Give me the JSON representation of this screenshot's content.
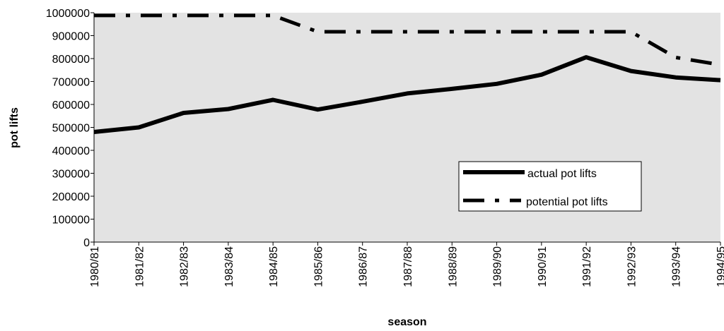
{
  "chart_data": {
    "type": "line",
    "xlabel": "season",
    "ylabel": "pot lifts",
    "categories": [
      "1980/81",
      "1981/82",
      "1982/83",
      "1983/84",
      "1984/85",
      "1985/86",
      "1986/87",
      "1987/88",
      "1988/89",
      "1989/90",
      "1990/91",
      "1991/92",
      "1992/93",
      "1993/94",
      "1994/95"
    ],
    "ylim": [
      0,
      1000000
    ],
    "yticks": [
      0,
      100000,
      200000,
      300000,
      400000,
      500000,
      600000,
      700000,
      800000,
      900000,
      1000000
    ],
    "ytick_labels": [
      "0",
      "100000",
      "200000",
      "300000",
      "400000",
      "500000",
      "600000",
      "700000",
      "800000",
      "900000",
      "1000000"
    ],
    "grid": false,
    "legend_position": "bottom-right",
    "plot_background": "#e3e3e3",
    "series": [
      {
        "name": "actual pot lifts",
        "style": "solid",
        "color": "#000000",
        "values": [
          480000,
          500000,
          563000,
          580000,
          620000,
          578000,
          612000,
          648000,
          668000,
          690000,
          730000,
          806000,
          746000,
          718000,
          706000
        ]
      },
      {
        "name": "potential pot lifts",
        "style": "dashed",
        "color": "#000000",
        "values": [
          988000,
          988000,
          988000,
          988000,
          988000,
          917000,
          917000,
          917000,
          917000,
          917000,
          917000,
          917000,
          917000,
          805000,
          773000
        ]
      }
    ]
  }
}
